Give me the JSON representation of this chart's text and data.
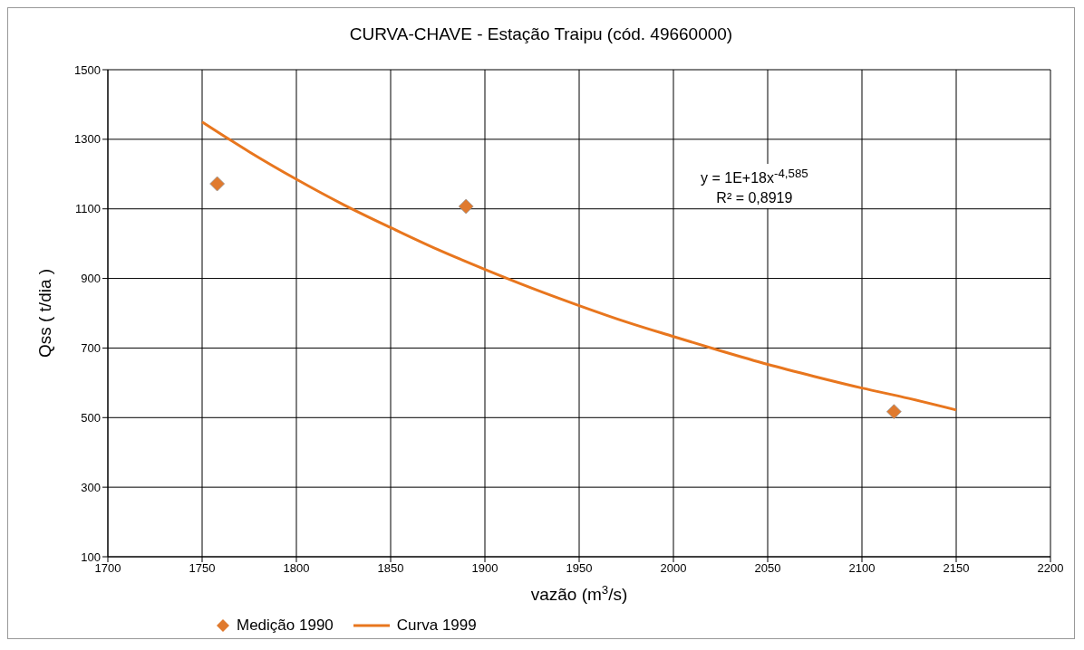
{
  "chart_data": {
    "type": "scatter",
    "title": "CURVA-CHAVE -  Estação Traipu (cód. 49660000)",
    "xlabel": "vazão (m$^{3}$/s)",
    "ylabel": "Qss ( t/dia )",
    "xlim": [
      1700,
      2200
    ],
    "xticks": [
      1700,
      1750,
      1800,
      1850,
      1900,
      1950,
      2000,
      2050,
      2100,
      2150,
      2200
    ],
    "ylim": [
      100,
      1500
    ],
    "yticks": [
      100,
      300,
      500,
      700,
      900,
      1100,
      1300,
      1500
    ],
    "grid": true,
    "legend": "bottom left",
    "annotations": [
      "y = 1E+18x$^{-4,585}$",
      "R² = 0,8919"
    ],
    "series": [
      {
        "name": "Medição 1990",
        "marker": "diamond",
        "color": "#e07a2e",
        "x": [
          1758,
          1890,
          2117
        ],
        "values": [
          1172,
          1107,
          517
        ]
      },
      {
        "name": "Curva 1999",
        "type": "line",
        "marker": "none",
        "color": "#e8761e",
        "x": [
          1750,
          1775,
          1800,
          1825,
          1850,
          1875,
          1900,
          1925,
          1950,
          1975,
          2000,
          2025,
          2050,
          2075,
          2100,
          2125,
          2150
        ],
        "values": [
          1350,
          1264,
          1185,
          1112,
          1046,
          983,
          926,
          872,
          822,
          775,
          733,
          692,
          653,
          618,
          585,
          555,
          522
        ]
      }
    ]
  }
}
